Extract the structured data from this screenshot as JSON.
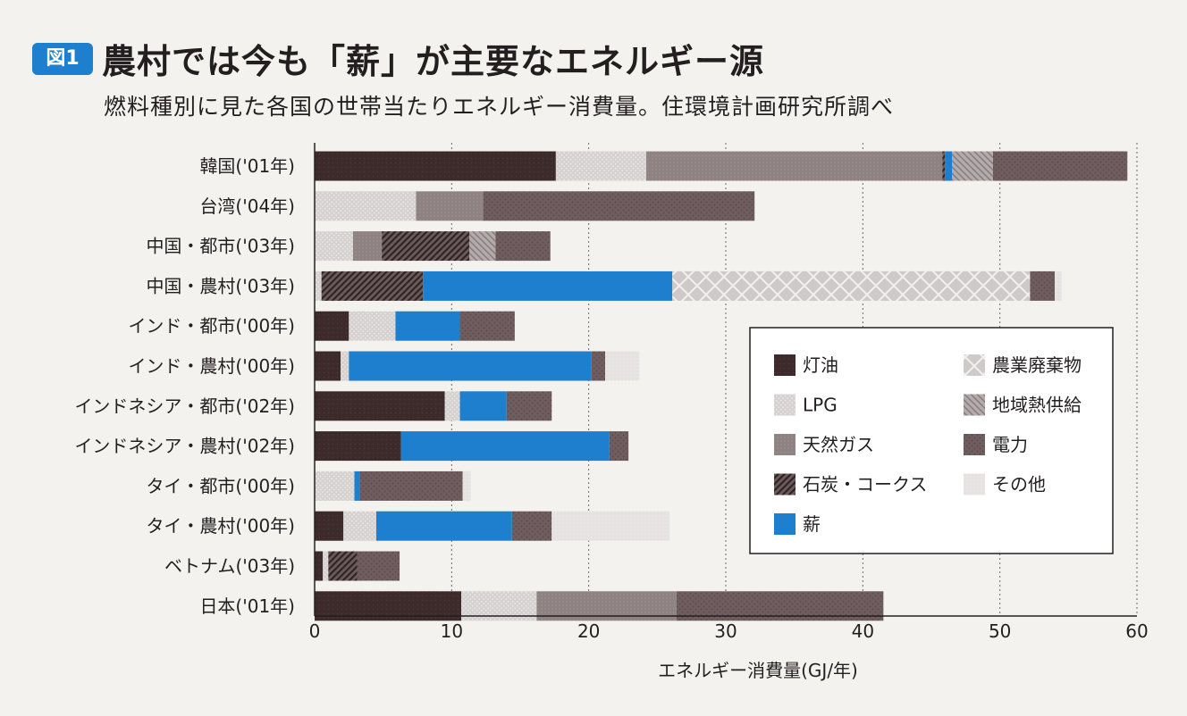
{
  "figure": {
    "badge": "図1",
    "title": "農村では今も「薪」が主要なエネルギー源",
    "subtitle": "燃料種別に見た各国の世帯当たりエネルギー消費量。住環境計画研究所調べ"
  },
  "chart_data": {
    "type": "bar",
    "orientation": "horizontal",
    "stacked": true,
    "title": "農村では今も「薪」が主要なエネルギー源",
    "xlabel": "エネルギー消費量(GJ/年)",
    "ylabel": "",
    "xlim": [
      0,
      60
    ],
    "xticks": [
      0,
      10,
      20,
      30,
      40,
      50,
      60
    ],
    "grid": "vertical-dotted",
    "legend_position": "right",
    "categories": [
      "韓国('01年)",
      "台湾('04年)",
      "中国・都市('03年)",
      "中国・農村('03年)",
      "インド・都市('00年)",
      "インド・農村('00年)",
      "インドネシア・都市('02年)",
      "インドネシア・農村('02年)",
      "タイ・都市('00年)",
      "タイ・農村('00年)",
      "ベトナム('03年)",
      "日本('01年)"
    ],
    "series": [
      {
        "name": "灯油",
        "key": "kerosene",
        "color": "#3d2a2a",
        "values": [
          17.6,
          0,
          0,
          0,
          2.5,
          1.9,
          9.5,
          6.3,
          0,
          2.1,
          0.6,
          10.7
        ]
      },
      {
        "name": "LPG",
        "key": "lpg",
        "color": "#d6d1d1",
        "values": [
          6.6,
          7.4,
          2.8,
          0.5,
          3.4,
          0.6,
          1.1,
          0,
          2.9,
          2.4,
          0.4,
          5.5
        ]
      },
      {
        "name": "天然ガス",
        "key": "natural_gas",
        "color": "#8e8283",
        "values": [
          21.6,
          4.9,
          2.1,
          0,
          0,
          0,
          0,
          0,
          0,
          0,
          0,
          10.2
        ]
      },
      {
        "name": "石炭・コークス",
        "key": "coal",
        "color": "#6b5b5c",
        "values": [
          0.2,
          0,
          6.4,
          7.4,
          0,
          0,
          0,
          0,
          0,
          0,
          2.1,
          0
        ]
      },
      {
        "name": "薪",
        "key": "firewood",
        "color": "#1d7fce",
        "values": [
          0.5,
          0,
          0,
          18.2,
          4.7,
          17.7,
          3.4,
          15.2,
          0.4,
          9.9,
          0,
          0
        ]
      },
      {
        "name": "農業廃棄物",
        "key": "agri_waste",
        "color": "#cfcaca",
        "values": [
          0,
          0,
          0,
          26.1,
          0,
          0,
          0,
          0,
          0,
          0,
          0,
          0
        ]
      },
      {
        "name": "地域熱供給",
        "key": "district_heating",
        "color": "#b4abac",
        "values": [
          3.0,
          0,
          1.9,
          0,
          0,
          0,
          0,
          0,
          0,
          0,
          0,
          0
        ]
      },
      {
        "name": "電力",
        "key": "electricity",
        "color": "#6f5d5f",
        "values": [
          9.8,
          19.8,
          4.0,
          1.8,
          4.0,
          1.0,
          3.3,
          1.4,
          7.5,
          2.9,
          3.1,
          15.1
        ]
      },
      {
        "name": "その他",
        "key": "other",
        "color": "#e6e2e2",
        "values": [
          0,
          0,
          0,
          0.5,
          0,
          2.5,
          0,
          0,
          0.6,
          8.6,
          0,
          0
        ]
      }
    ]
  }
}
